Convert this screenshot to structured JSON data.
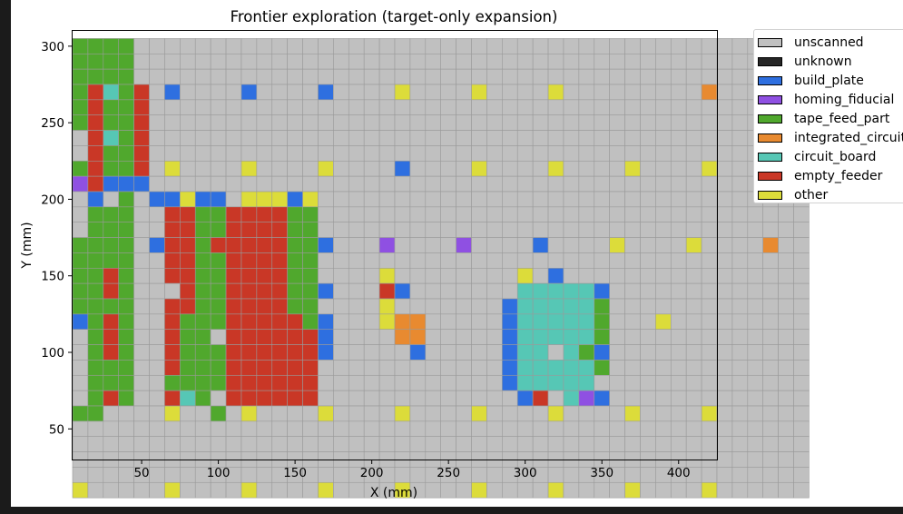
{
  "chart_data": {
    "type": "heatmap",
    "title": "Frontier exploration (target-only expansion)",
    "xlabel": "X (mm)",
    "ylabel": "Y (mm)",
    "xlim": [
      5,
      425
    ],
    "ylim": [
      30,
      310
    ],
    "cell_size_mm": 10,
    "x_ticks": [
      50,
      100,
      150,
      200,
      250,
      300,
      350,
      400
    ],
    "y_ticks": [
      50,
      100,
      150,
      200,
      250,
      300
    ],
    "grid": true,
    "legend_position": "outside right, upper",
    "categories": [
      {
        "key": ".",
        "label": "unscanned",
        "color": "#c0c0c0"
      },
      {
        "key": "K",
        "label": "unknown",
        "color": "#262626"
      },
      {
        "key": "B",
        "label": "build_plate",
        "color": "#2e6fe0"
      },
      {
        "key": "H",
        "label": "homing_fiducial",
        "color": "#8f50e2"
      },
      {
        "key": "G",
        "label": "tape_feed_part",
        "color": "#50a82d"
      },
      {
        "key": "O",
        "label": "integrated_circuit",
        "color": "#e88a30"
      },
      {
        "key": "C",
        "label": "circuit_board",
        "color": "#56c7b5"
      },
      {
        "key": "R",
        "label": "empty_feeder",
        "color": "#c93726"
      },
      {
        "key": "Y",
        "label": "other",
        "color": "#dcdc3a"
      }
    ],
    "rows_origin": "top row = Y 300 mm, bottom row = Y 35 mm; column 0 = X 10 mm",
    "rows": [
      "GGGG............................................",
      "GGGG............................................",
      "GGGG.........................................O..",
      "GRCGR.B....B....B....Y....Y....Y.........O...Y..",
      "GRGGR........................................B..",
      "GRGGR...........................................",
      ".RCGR...........................................",
      ".RGGR...........................................",
      "GRGGR.Y....Y....Y....B....Y....Y....Y....Y......",
      "HRBBB...........................................",
      ".B.G.BBYBB.YYYBY................................",
      ".GGG..RRGGRRRRGG................................",
      ".GGG..RRGGRRRRGG................................",
      "GGGG.BRRGRRRRRGGB...H....H....B....Y....Y....O..",
      "GGGG..RRGGRRRRGG................................",
      "GGRG..RRGGRRRRGG....Y........Y.B................",
      "GGRG...RGGRRRRGGB...RB.......CCCCCB.............",
      "GGGG..RRGGRRRRGG....Y.......BCCCCCG.............",
      "BGRG..RGGGRRRRRGB...YOO.....BCCCCCG...Y.........",
      ".GRG..RGG.RRRRRRB....OO.....BCCCCCG.............",
      ".GRG..RGGGRRRRRRB.....B.....BCC.CGB.............",
      ".GGG..RGGGRRRRRR............BCCCCCG.............",
      ".GGG..GGGGRRRRRR............BCCCCC..............",
      ".GRG..RCG.RRRRRR.............BR.CHB.............",
      "GG....Y..G.Y....Y....Y....Y....Y....Y....Y......",
      "................................................",
      "................................................",
      "................................................",
      "................................................",
      "Y.....Y....Y....Y....Y....Y....Y....Y....Y......"
    ]
  }
}
